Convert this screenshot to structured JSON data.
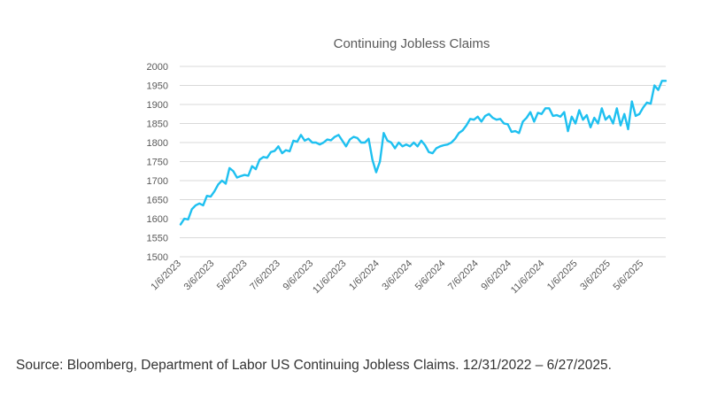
{
  "chart_data": {
    "type": "line",
    "title": "Continuing Jobless Claims",
    "xlabel": "",
    "ylabel": "",
    "ylim": [
      1500,
      2000
    ],
    "yticks": [
      1500,
      1550,
      1600,
      1650,
      1700,
      1750,
      1800,
      1850,
      1900,
      1950,
      2000
    ],
    "xtick_labels": [
      "1/6/2023",
      "3/6/2023",
      "5/6/2023",
      "7/6/2023",
      "9/6/2023",
      "11/6/2023",
      "1/6/2024",
      "3/6/2024",
      "5/6/2024",
      "7/6/2024",
      "9/6/2024",
      "11/6/2024",
      "1/6/2025",
      "3/6/2025",
      "5/6/2025"
    ],
    "grid": true,
    "legend": "none",
    "line_color": "#1ec0f0",
    "series": [
      {
        "values": [
          1585,
          1600,
          1598,
          1625,
          1635,
          1640,
          1635,
          1660,
          1658,
          1672,
          1690,
          1700,
          1692,
          1733,
          1725,
          1708,
          1712,
          1715,
          1713,
          1738,
          1730,
          1755,
          1762,
          1760,
          1775,
          1778,
          1790,
          1772,
          1780,
          1777,
          1805,
          1802,
          1820,
          1805,
          1810,
          1800,
          1800,
          1795,
          1800,
          1808,
          1806,
          1815,
          1820,
          1805,
          1790,
          1808,
          1815,
          1812,
          1800,
          1800,
          1810,
          1755,
          1722,
          1750,
          1825,
          1805,
          1800,
          1785,
          1800,
          1790,
          1795,
          1790,
          1800,
          1790,
          1805,
          1793,
          1775,
          1772,
          1785,
          1790,
          1793,
          1795,
          1800,
          1810,
          1825,
          1832,
          1845,
          1862,
          1860,
          1868,
          1855,
          1870,
          1875,
          1865,
          1860,
          1862,
          1850,
          1848,
          1828,
          1830,
          1825,
          1855,
          1865,
          1880,
          1855,
          1878,
          1875,
          1890,
          1890,
          1870,
          1872,
          1868,
          1880,
          1830,
          1868,
          1850,
          1885,
          1860,
          1872,
          1840,
          1865,
          1850,
          1890,
          1860,
          1870,
          1850,
          1890,
          1845,
          1875,
          1835,
          1908,
          1870,
          1875,
          1892,
          1905,
          1902,
          1950,
          1938,
          1962,
          1962
        ]
      }
    ]
  },
  "source": "Source: Bloomberg, Department of Labor US Continuing Jobless Claims. 12/31/2022 – 6/27/2025."
}
